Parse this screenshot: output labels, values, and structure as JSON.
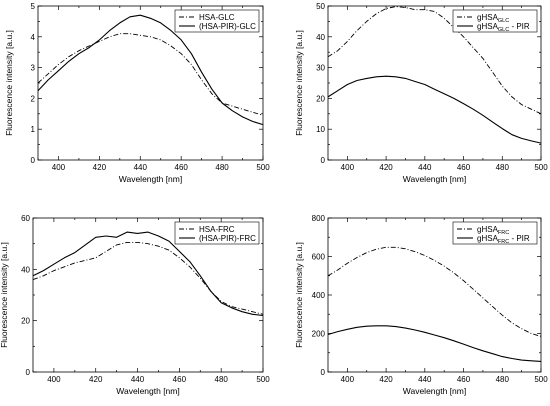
{
  "chart_data": [
    {
      "type": "line",
      "xlabel": "Wavelength [nm]",
      "ylabel": "Fluorescence intensity [a.u.]",
      "xlim": [
        390,
        500
      ],
      "ylim": [
        0,
        5
      ],
      "xticks": [
        400,
        420,
        440,
        460,
        480,
        500
      ],
      "yticks": [
        0,
        1,
        2,
        3,
        4,
        5
      ],
      "legend_position": "top-right",
      "series": [
        {
          "name": "HSA-GLC",
          "style": "dash-dot",
          "x": [
            390,
            395,
            400,
            405,
            410,
            415,
            420,
            425,
            430,
            435,
            440,
            445,
            450,
            455,
            460,
            465,
            470,
            475,
            480,
            485,
            490,
            495,
            500
          ],
          "y": [
            2.5,
            2.8,
            3.1,
            3.35,
            3.55,
            3.7,
            3.85,
            4.0,
            4.1,
            4.1,
            4.05,
            4.0,
            3.9,
            3.7,
            3.45,
            3.1,
            2.6,
            2.15,
            1.85,
            1.75,
            1.65,
            1.55,
            1.45
          ]
        },
        {
          "name": "(HSA-PIR)-GLC",
          "style": "solid",
          "x": [
            390,
            395,
            400,
            405,
            410,
            415,
            420,
            425,
            430,
            435,
            440,
            445,
            450,
            455,
            460,
            465,
            470,
            475,
            480,
            485,
            490,
            495,
            500
          ],
          "y": [
            2.25,
            2.6,
            2.9,
            3.2,
            3.45,
            3.65,
            3.9,
            4.2,
            4.45,
            4.65,
            4.7,
            4.6,
            4.45,
            4.2,
            3.9,
            3.45,
            2.85,
            2.3,
            1.85,
            1.6,
            1.4,
            1.25,
            1.15
          ]
        }
      ]
    },
    {
      "type": "line",
      "xlabel": "Wavelength [nm]",
      "ylabel": "Fluorescence intensity [a.u.]",
      "xlim": [
        390,
        500
      ],
      "ylim": [
        0,
        50
      ],
      "xticks": [
        400,
        420,
        440,
        460,
        480,
        500
      ],
      "yticks": [
        0,
        10,
        20,
        30,
        40,
        50
      ],
      "legend_position": "top-right",
      "series": [
        {
          "name": "gHSA",
          "name_sub": "GLC",
          "name_suffix": "",
          "style": "dash-dot",
          "x": [
            390,
            395,
            400,
            405,
            410,
            415,
            420,
            425,
            430,
            435,
            440,
            445,
            450,
            455,
            460,
            465,
            470,
            475,
            480,
            485,
            490,
            495,
            500
          ],
          "y": [
            33.5,
            35.5,
            38.5,
            42,
            45,
            47.5,
            49.2,
            49.8,
            49.5,
            48.8,
            48.8,
            48.2,
            46,
            43,
            40,
            36.5,
            33,
            28.5,
            24,
            20.5,
            18,
            16.5,
            15
          ]
        },
        {
          "name": "gHSA",
          "name_sub": "GLC",
          "name_suffix": " - PIR",
          "style": "solid",
          "x": [
            390,
            395,
            400,
            405,
            410,
            415,
            420,
            425,
            430,
            435,
            440,
            445,
            450,
            455,
            460,
            465,
            470,
            475,
            480,
            485,
            490,
            495,
            500
          ],
          "y": [
            20.5,
            22.5,
            24.5,
            25.8,
            26.5,
            27,
            27.2,
            27,
            26.5,
            25.5,
            24.5,
            23,
            21.5,
            20,
            18.3,
            16.5,
            14.5,
            12.3,
            10.2,
            8.2,
            7,
            6.2,
            5.5
          ]
        }
      ]
    },
    {
      "type": "line",
      "xlabel": "Wavelength [nm]",
      "ylabel": "Fluorescence intensity [a.u.]",
      "xlim": [
        390,
        500
      ],
      "ylim": [
        0,
        60
      ],
      "xticks": [
        400,
        420,
        440,
        460,
        480,
        500
      ],
      "yticks": [
        0,
        20,
        40,
        60
      ],
      "legend_position": "top-right",
      "series": [
        {
          "name": "HSA-FRC",
          "style": "dash-dot",
          "x": [
            390,
            395,
            400,
            405,
            410,
            415,
            420,
            425,
            430,
            435,
            440,
            445,
            450,
            455,
            460,
            465,
            470,
            475,
            480,
            485,
            490,
            495,
            500
          ],
          "y": [
            36,
            37.5,
            39.5,
            41,
            42.5,
            43.5,
            44.5,
            47,
            49.5,
            50.5,
            50.5,
            50,
            49,
            47.5,
            44.5,
            41,
            36.5,
            31.5,
            27.5,
            25.5,
            24.5,
            23.5,
            22.5
          ]
        },
        {
          "name": "(HSA-PIR)-FRC",
          "style": "solid",
          "x": [
            390,
            395,
            400,
            405,
            410,
            415,
            420,
            425,
            430,
            435,
            440,
            445,
            450,
            455,
            460,
            465,
            470,
            475,
            480,
            485,
            490,
            495,
            500
          ],
          "y": [
            37.5,
            39.5,
            42,
            44.5,
            46.5,
            49.5,
            52.5,
            53,
            52.5,
            54.5,
            54,
            54.5,
            53,
            51,
            47,
            43,
            37.5,
            31.5,
            27,
            25,
            23.5,
            22.5,
            22
          ]
        }
      ]
    },
    {
      "type": "line",
      "xlabel": "Wavelength [nm]",
      "ylabel": "Fluorescence intensity [a.u.]",
      "xlim": [
        390,
        500
      ],
      "ylim": [
        0,
        800
      ],
      "xticks": [
        400,
        420,
        440,
        460,
        480,
        500
      ],
      "yticks": [
        0,
        200,
        400,
        600,
        800
      ],
      "legend_position": "top-right",
      "series": [
        {
          "name": "gHSA",
          "name_sub": "FRC",
          "name_suffix": "",
          "style": "dash-dot",
          "x": [
            390,
            395,
            400,
            405,
            410,
            415,
            420,
            425,
            430,
            435,
            440,
            445,
            450,
            455,
            460,
            465,
            470,
            475,
            480,
            485,
            490,
            495,
            500
          ],
          "y": [
            500,
            530,
            565,
            595,
            620,
            638,
            648,
            648,
            640,
            625,
            605,
            580,
            550,
            515,
            475,
            430,
            385,
            340,
            295,
            255,
            225,
            200,
            185
          ]
        },
        {
          "name": "gHSA",
          "name_sub": "FRC",
          "name_suffix": " - PIR",
          "style": "solid",
          "x": [
            390,
            395,
            400,
            405,
            410,
            415,
            420,
            425,
            430,
            435,
            440,
            445,
            450,
            455,
            460,
            465,
            470,
            475,
            480,
            485,
            490,
            495,
            500
          ],
          "y": [
            195,
            210,
            222,
            232,
            238,
            240,
            240,
            236,
            228,
            218,
            206,
            192,
            178,
            162,
            145,
            127,
            110,
            95,
            80,
            70,
            62,
            58,
            55
          ]
        }
      ]
    }
  ]
}
